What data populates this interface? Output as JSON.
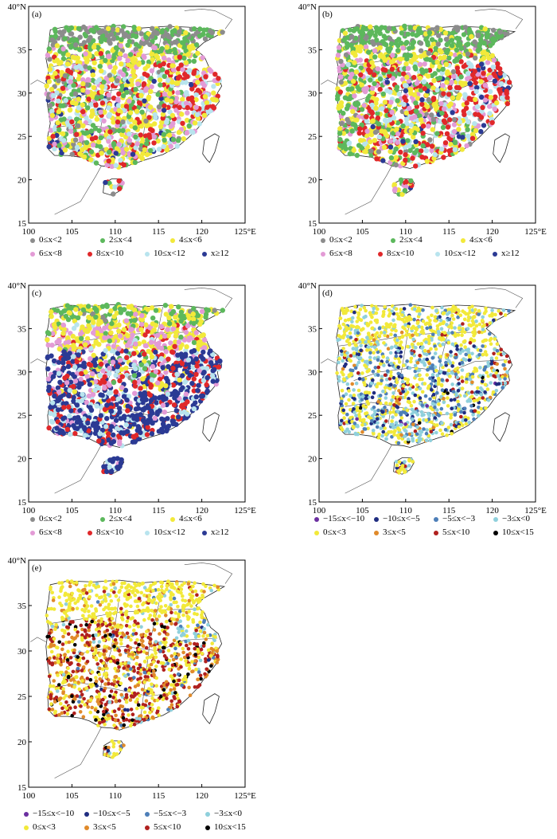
{
  "axes": {
    "x_ticks": [
      "100",
      "105",
      "110",
      "115",
      "120",
      "125°E"
    ],
    "y_ticks": [
      "15",
      "20",
      "25",
      "30",
      "35",
      "40°N"
    ],
    "x_range": [
      100,
      125
    ],
    "y_range": [
      15,
      40
    ]
  },
  "legends": {
    "count": {
      "rows": [
        [
          {
            "label": "0≤x<2",
            "color": "#8c8c8c"
          },
          {
            "label": "2≤x<4",
            "color": "#5cb85c"
          },
          {
            "label": "4≤x<6",
            "color": "#f2e93a"
          }
        ],
        [
          {
            "label": "6≤x<8",
            "color": "#e39bd6"
          },
          {
            "label": "8≤x<10",
            "color": "#e0282a"
          },
          {
            "label": "10≤x<12",
            "color": "#b8e4ee"
          },
          {
            "label": "x≥12",
            "color": "#2b3a94"
          }
        ]
      ]
    },
    "diff": {
      "rows": [
        [
          {
            "label": "−15≤x<−10",
            "color": "#6b2fa0"
          },
          {
            "label": "−10≤x<−5",
            "color": "#1f2d80"
          },
          {
            "label": "−5≤x<−3",
            "color": "#4d7fb8"
          },
          {
            "label": "−3≤x<0",
            "color": "#8fd0dc"
          }
        ],
        [
          {
            "label": "0≤x<3",
            "color": "#f2e93a"
          },
          {
            "label": "3≤x<5",
            "color": "#e08a2a"
          },
          {
            "label": "5≤x<10",
            "color": "#b0201e"
          },
          {
            "label": "10≤x<15",
            "color": "#000000"
          }
        ]
      ]
    }
  },
  "panels": [
    {
      "label": "(a)",
      "legend": "count",
      "mix": [
        0.06,
        0.17,
        0.3,
        0.16,
        0.15,
        0.12,
        0.04
      ]
    },
    {
      "label": "(b)",
      "legend": "count",
      "mix": [
        0.04,
        0.19,
        0.26,
        0.14,
        0.19,
        0.13,
        0.05
      ]
    },
    {
      "label": "(c)",
      "legend": "count",
      "mix": [
        0.01,
        0.06,
        0.15,
        0.13,
        0.2,
        0.15,
        0.3
      ]
    },
    {
      "label": "(d)",
      "legend": "diff",
      "mix": [
        0.01,
        0.1,
        0.14,
        0.33,
        0.32,
        0.05,
        0.04,
        0.01
      ]
    },
    {
      "label": "(e)",
      "legend": "diff",
      "mix": [
        0.0,
        0.01,
        0.04,
        0.07,
        0.4,
        0.18,
        0.25,
        0.05
      ]
    }
  ]
}
